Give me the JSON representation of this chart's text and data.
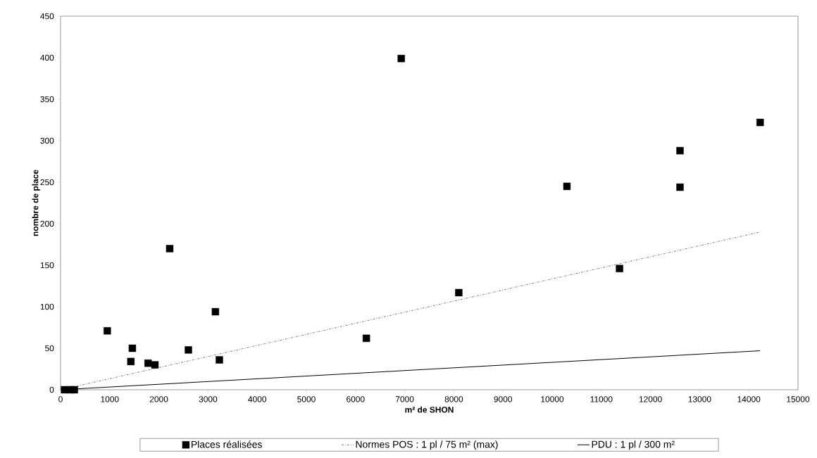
{
  "chart_data": {
    "type": "scatter",
    "xlabel": "m² de SHON",
    "ylabel": "nombre de place",
    "xlim": [
      0,
      15000
    ],
    "ylim": [
      0,
      450
    ],
    "xticks": [
      0,
      1000,
      2000,
      3000,
      4000,
      5000,
      6000,
      7000,
      8000,
      9000,
      10000,
      11000,
      12000,
      13000,
      14000,
      15000
    ],
    "yticks": [
      0,
      50,
      100,
      150,
      200,
      250,
      300,
      350,
      400,
      450
    ],
    "legend": "bottom",
    "grid": false,
    "series": [
      {
        "name": "Places réalisées",
        "marker": "square",
        "color": "#000000",
        "x": [
          80,
          200,
          280,
          950,
          1430,
          1460,
          1780,
          1920,
          2220,
          2600,
          3150,
          3230,
          6220,
          6930,
          8100,
          10300,
          11370,
          12600,
          12600,
          14230
        ],
        "values": [
          0,
          0,
          0,
          71,
          34,
          50,
          32,
          30,
          170,
          48,
          94,
          36,
          62,
          399,
          117,
          245,
          146,
          288,
          244,
          322
        ]
      },
      {
        "name": "Normes POS : 1 pl / 75 m² (max)",
        "type": "line",
        "line_style": "dashed",
        "color": "#808080",
        "x": [
          0,
          14230
        ],
        "values": [
          0,
          190
        ]
      },
      {
        "name": "PDU : 1 pl / 300 m²",
        "type": "line",
        "line_style": "solid",
        "color": "#000000",
        "x": [
          0,
          14230
        ],
        "values": [
          0,
          47
        ]
      }
    ]
  }
}
